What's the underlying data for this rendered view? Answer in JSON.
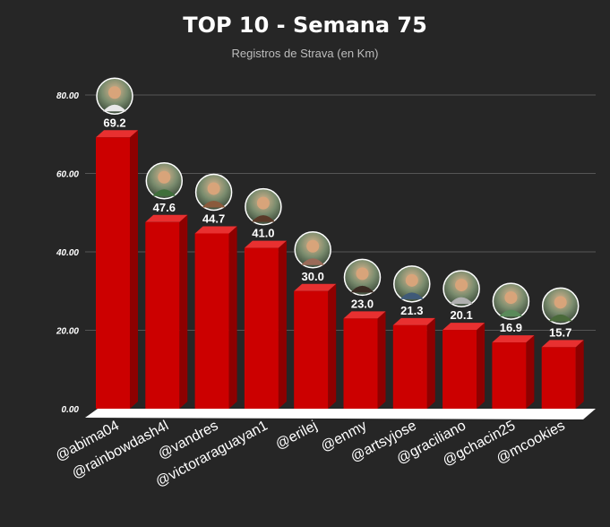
{
  "chart_data": {
    "type": "bar",
    "title": "TOP 10 - Semana 75",
    "subtitle": "Registros de Strava (en Km)",
    "xlabel": "",
    "ylabel": "",
    "ylim": [
      0,
      80
    ],
    "grid": true,
    "yticks": [
      "0.00",
      "20.00",
      "40.00",
      "60.00",
      "80.00"
    ],
    "categories": [
      "@abima04",
      "@rainbowdash4l",
      "@vandres",
      "@victoraraguayan1",
      "@erilej",
      "@enmy",
      "@artsyjose",
      "@graciliano",
      "@gchacin25",
      "@mcookies"
    ],
    "values": [
      69.2,
      47.6,
      44.7,
      41.0,
      30.0,
      23.0,
      21.3,
      20.1,
      16.9,
      15.7
    ],
    "value_labels": [
      "69.2",
      "47.6",
      "44.7",
      "41.0",
      "30.0",
      "23.0",
      "21.3",
      "20.1",
      "16.9",
      "15.7"
    ],
    "bar_color": "#cc0000",
    "bar_side_color": "#8e0000",
    "bar_top_color": "#e83030"
  }
}
